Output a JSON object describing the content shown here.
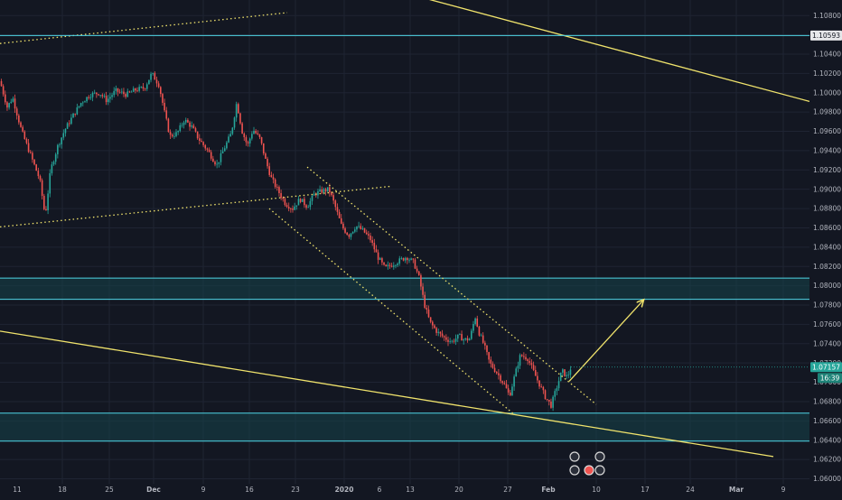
{
  "colors": {
    "background": "#131722",
    "grid": "#1f2433",
    "axis_text": "#b2b5be",
    "bull": "#26a69a",
    "bear": "#ef5350",
    "trend_line": "#f0e36c",
    "zone_border": "#4fd6e6",
    "zone_fill": "#16434a",
    "price_badge": "#26a69a",
    "timer_badge": "#1e8378",
    "level_badge": "#e6e7ea"
  },
  "chart_data": {
    "type": "candlestick",
    "title": "",
    "xlabel": "",
    "ylabel": "",
    "price_axis": {
      "ylim": [
        1.06,
        1.109
      ],
      "ticks": [
        "1.10800",
        "1.10600",
        "1.10400",
        "1.10200",
        "1.10000",
        "1.09800",
        "1.09600",
        "1.09400",
        "1.09200",
        "1.09000",
        "1.08800",
        "1.08600",
        "1.08400",
        "1.08200",
        "1.08000",
        "1.07800",
        "1.07600",
        "1.07400",
        "1.07200",
        "1.07000",
        "1.06800",
        "1.06600",
        "1.06400",
        "1.06200",
        "1.06000"
      ]
    },
    "time_axis": {
      "ticks": [
        "11",
        "18",
        "25",
        "Dec",
        "9",
        "16",
        "23",
        "2020",
        "6",
        "13",
        "20",
        "27",
        "Feb",
        "10",
        "17",
        "24",
        "Mar",
        "9"
      ]
    },
    "current_price": "1.07157",
    "countdown": "16:39",
    "marked_level": "1.10593",
    "price_path": [
      {
        "x": 0,
        "y": 1.1012
      },
      {
        "x": 8,
        "y": 1.0985
      },
      {
        "x": 14,
        "y": 1.0995
      },
      {
        "x": 24,
        "y": 1.096
      },
      {
        "x": 34,
        "y": 1.0935
      },
      {
        "x": 44,
        "y": 1.091
      },
      {
        "x": 50,
        "y": 1.0872
      },
      {
        "x": 56,
        "y": 1.092
      },
      {
        "x": 64,
        "y": 1.0945
      },
      {
        "x": 72,
        "y": 1.0962
      },
      {
        "x": 80,
        "y": 1.0975
      },
      {
        "x": 90,
        "y": 1.099
      },
      {
        "x": 100,
        "y": 1.0998
      },
      {
        "x": 110,
        "y": 1.1
      },
      {
        "x": 118,
        "y": 1.0992
      },
      {
        "x": 128,
        "y": 1.1002
      },
      {
        "x": 140,
        "y": 1.0998
      },
      {
        "x": 150,
        "y": 1.1003
      },
      {
        "x": 160,
        "y": 1.1005
      },
      {
        "x": 168,
        "y": 1.102
      },
      {
        "x": 176,
        "y": 1.1008
      },
      {
        "x": 182,
        "y": 1.098
      },
      {
        "x": 188,
        "y": 1.0955
      },
      {
        "x": 196,
        "y": 1.0958
      },
      {
        "x": 204,
        "y": 1.0972
      },
      {
        "x": 212,
        "y": 1.0965
      },
      {
        "x": 220,
        "y": 1.0952
      },
      {
        "x": 230,
        "y": 1.094
      },
      {
        "x": 240,
        "y": 1.0925
      },
      {
        "x": 248,
        "y": 1.0942
      },
      {
        "x": 256,
        "y": 1.0958
      },
      {
        "x": 262,
        "y": 1.099
      },
      {
        "x": 268,
        "y": 1.096
      },
      {
        "x": 274,
        "y": 1.0945
      },
      {
        "x": 280,
        "y": 1.0962
      },
      {
        "x": 288,
        "y": 1.0952
      },
      {
        "x": 294,
        "y": 1.093
      },
      {
        "x": 300,
        "y": 1.0912
      },
      {
        "x": 308,
        "y": 1.0898
      },
      {
        "x": 316,
        "y": 1.0885
      },
      {
        "x": 324,
        "y": 1.088
      },
      {
        "x": 332,
        "y": 1.089
      },
      {
        "x": 340,
        "y": 1.0882
      },
      {
        "x": 348,
        "y": 1.0895
      },
      {
        "x": 356,
        "y": 1.0898
      },
      {
        "x": 364,
        "y": 1.09
      },
      {
        "x": 370,
        "y": 1.0885
      },
      {
        "x": 378,
        "y": 1.0862
      },
      {
        "x": 386,
        "y": 1.0852
      },
      {
        "x": 394,
        "y": 1.0862
      },
      {
        "x": 402,
        "y": 1.0857
      },
      {
        "x": 410,
        "y": 1.0848
      },
      {
        "x": 418,
        "y": 1.083
      },
      {
        "x": 426,
        "y": 1.0818
      },
      {
        "x": 434,
        "y": 1.0822
      },
      {
        "x": 442,
        "y": 1.0826
      },
      {
        "x": 450,
        "y": 1.083
      },
      {
        "x": 458,
        "y": 1.0824
      },
      {
        "x": 464,
        "y": 1.0808
      },
      {
        "x": 470,
        "y": 1.078
      },
      {
        "x": 476,
        "y": 1.0762
      },
      {
        "x": 484,
        "y": 1.0752
      },
      {
        "x": 492,
        "y": 1.0746
      },
      {
        "x": 500,
        "y": 1.0742
      },
      {
        "x": 508,
        "y": 1.0748
      },
      {
        "x": 514,
        "y": 1.0744
      },
      {
        "x": 520,
        "y": 1.0745
      },
      {
        "x": 526,
        "y": 1.0768
      },
      {
        "x": 530,
        "y": 1.0752
      },
      {
        "x": 536,
        "y": 1.0738
      },
      {
        "x": 542,
        "y": 1.072
      },
      {
        "x": 550,
        "y": 1.071
      },
      {
        "x": 558,
        "y": 1.0698
      },
      {
        "x": 564,
        "y": 1.0686
      },
      {
        "x": 570,
        "y": 1.0708
      },
      {
        "x": 576,
        "y": 1.0728
      },
      {
        "x": 584,
        "y": 1.0725
      },
      {
        "x": 592,
        "y": 1.0708
      },
      {
        "x": 598,
        "y": 1.0696
      },
      {
        "x": 604,
        "y": 1.0684
      },
      {
        "x": 610,
        "y": 1.0676
      },
      {
        "x": 616,
        "y": 1.0694
      },
      {
        "x": 622,
        "y": 1.0712
      },
      {
        "x": 628,
        "y": 1.0705
      },
      {
        "x": 632,
        "y": 1.0716
      }
    ],
    "drawings": [
      {
        "kind": "channel_line",
        "style": "dotted",
        "from": {
          "x": 0,
          "y": 1.1051
        },
        "to": {
          "x": 318,
          "y": 1.1083
        }
      },
      {
        "kind": "channel_line",
        "style": "dotted",
        "from": {
          "x": 0,
          "y": 1.0861
        },
        "to": {
          "x": 432,
          "y": 1.0903
        }
      },
      {
        "kind": "channel_line",
        "style": "dotted",
        "from": {
          "x": 340,
          "y": 1.0923
        },
        "to": {
          "x": 660,
          "y": 1.0677
        }
      },
      {
        "kind": "channel_line",
        "style": "dotted",
        "from": {
          "x": 298,
          "y": 1.088
        },
        "to": {
          "x": 570,
          "y": 1.0666
        }
      },
      {
        "kind": "trend_line",
        "style": "solid",
        "from": {
          "x": 422,
          "y": 1.111
        },
        "to": {
          "x": 896,
          "y": 1.0991
        }
      },
      {
        "kind": "trend_line",
        "style": "solid",
        "from": {
          "x": 0,
          "y": 1.0753
        },
        "to": {
          "x": 856,
          "y": 1.0623
        }
      },
      {
        "kind": "arrow",
        "style": "solid",
        "from": {
          "x": 630,
          "y": 1.0701
        },
        "to": {
          "x": 712,
          "y": 1.0785
        }
      },
      {
        "kind": "level_line",
        "y": 1.10593
      }
    ],
    "zones": [
      {
        "y_top": 1.0808,
        "y_bottom": 1.0786
      },
      {
        "y_top": 1.0668,
        "y_bottom": 1.0639
      }
    ],
    "legend": "none",
    "grid": true
  }
}
